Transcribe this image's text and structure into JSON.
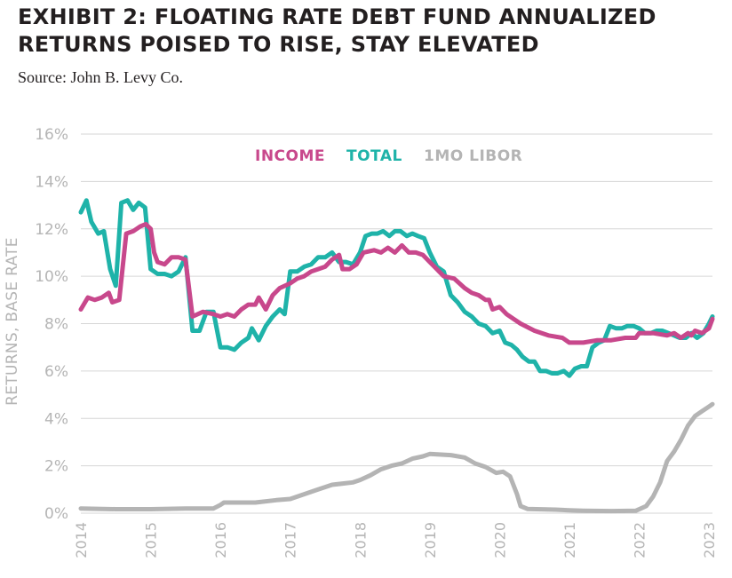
{
  "title_line1": "EXHIBIT 2: FLOATING RATE DEBT FUND ANNUALIZED",
  "title_line2": "RETURNS POISED TO RISE, STAY ELEVATED",
  "source": "Source: John B. Levy Co.",
  "chart_data": {
    "type": "line",
    "title": "EXHIBIT 2: FLOATING RATE DEBT FUND ANNUALIZED RETURNS POISED TO RISE, STAY ELEVATED",
    "xlabel": "",
    "ylabel": "RETURNS, BASE RATE",
    "xlim": [
      2014,
      2023.1
    ],
    "ylim": [
      0,
      16
    ],
    "x_ticks": [
      "2014",
      "2015",
      "2016",
      "2017",
      "2018",
      "2019",
      "2020",
      "2021",
      "2022",
      "2023"
    ],
    "y_ticks": [
      "0%",
      "2%",
      "4%",
      "6%",
      "8%",
      "10%",
      "12%",
      "14%",
      "16%"
    ],
    "grid": "horizontal",
    "legend_position": "top-center",
    "series": [
      {
        "name": "INCOME",
        "color": "#c8488c",
        "points": [
          [
            2014.0,
            8.6
          ],
          [
            2014.1,
            9.1
          ],
          [
            2014.2,
            9.0
          ],
          [
            2014.3,
            9.1
          ],
          [
            2014.4,
            9.3
          ],
          [
            2014.45,
            8.9
          ],
          [
            2014.55,
            9.0
          ],
          [
            2014.65,
            11.8
          ],
          [
            2014.75,
            11.9
          ],
          [
            2014.85,
            12.1
          ],
          [
            2014.93,
            12.2
          ],
          [
            2015.0,
            12.0
          ],
          [
            2015.05,
            11.0
          ],
          [
            2015.1,
            10.6
          ],
          [
            2015.2,
            10.5
          ],
          [
            2015.3,
            10.8
          ],
          [
            2015.4,
            10.8
          ],
          [
            2015.5,
            10.7
          ],
          [
            2015.6,
            8.3
          ],
          [
            2015.75,
            8.5
          ],
          [
            2015.9,
            8.4
          ],
          [
            2016.0,
            8.3
          ],
          [
            2016.1,
            8.4
          ],
          [
            2016.2,
            8.3
          ],
          [
            2016.3,
            8.6
          ],
          [
            2016.4,
            8.8
          ],
          [
            2016.5,
            8.8
          ],
          [
            2016.55,
            9.1
          ],
          [
            2016.65,
            8.6
          ],
          [
            2016.75,
            9.2
          ],
          [
            2016.85,
            9.5
          ],
          [
            2017.0,
            9.7
          ],
          [
            2017.1,
            9.9
          ],
          [
            2017.2,
            10.0
          ],
          [
            2017.3,
            10.2
          ],
          [
            2017.4,
            10.3
          ],
          [
            2017.5,
            10.4
          ],
          [
            2017.6,
            10.7
          ],
          [
            2017.7,
            10.9
          ],
          [
            2017.75,
            10.3
          ],
          [
            2017.85,
            10.3
          ],
          [
            2017.95,
            10.5
          ],
          [
            2018.05,
            11.0
          ],
          [
            2018.2,
            11.1
          ],
          [
            2018.3,
            11.0
          ],
          [
            2018.4,
            11.2
          ],
          [
            2018.5,
            11.0
          ],
          [
            2018.6,
            11.3
          ],
          [
            2018.7,
            11.0
          ],
          [
            2018.8,
            11.0
          ],
          [
            2018.9,
            10.9
          ],
          [
            2019.0,
            10.6
          ],
          [
            2019.1,
            10.3
          ],
          [
            2019.2,
            10.0
          ],
          [
            2019.35,
            9.9
          ],
          [
            2019.5,
            9.5
          ],
          [
            2019.6,
            9.3
          ],
          [
            2019.7,
            9.2
          ],
          [
            2019.8,
            9.0
          ],
          [
            2019.85,
            9.0
          ],
          [
            2019.9,
            8.6
          ],
          [
            2020.0,
            8.7
          ],
          [
            2020.1,
            8.4
          ],
          [
            2020.2,
            8.2
          ],
          [
            2020.3,
            8.0
          ],
          [
            2020.5,
            7.7
          ],
          [
            2020.7,
            7.5
          ],
          [
            2020.9,
            7.4
          ],
          [
            2021.0,
            7.2
          ],
          [
            2021.2,
            7.2
          ],
          [
            2021.4,
            7.3
          ],
          [
            2021.6,
            7.3
          ],
          [
            2021.8,
            7.4
          ],
          [
            2021.95,
            7.4
          ],
          [
            2022.0,
            7.6
          ],
          [
            2022.2,
            7.6
          ],
          [
            2022.4,
            7.5
          ],
          [
            2022.5,
            7.6
          ],
          [
            2022.6,
            7.4
          ],
          [
            2022.7,
            7.6
          ],
          [
            2022.75,
            7.5
          ],
          [
            2022.8,
            7.7
          ],
          [
            2022.9,
            7.6
          ],
          [
            2023.0,
            7.8
          ],
          [
            2023.05,
            8.2
          ]
        ]
      },
      {
        "name": "TOTAL",
        "color": "#1fb3a9",
        "points": [
          [
            2014.0,
            12.7
          ],
          [
            2014.08,
            13.2
          ],
          [
            2014.15,
            12.3
          ],
          [
            2014.25,
            11.8
          ],
          [
            2014.33,
            11.9
          ],
          [
            2014.42,
            10.3
          ],
          [
            2014.5,
            9.6
          ],
          [
            2014.58,
            13.1
          ],
          [
            2014.67,
            13.2
          ],
          [
            2014.75,
            12.8
          ],
          [
            2014.83,
            13.1
          ],
          [
            2014.92,
            12.9
          ],
          [
            2015.0,
            10.3
          ],
          [
            2015.1,
            10.1
          ],
          [
            2015.2,
            10.1
          ],
          [
            2015.3,
            10.0
          ],
          [
            2015.4,
            10.2
          ],
          [
            2015.5,
            10.8
          ],
          [
            2015.6,
            7.7
          ],
          [
            2015.7,
            7.7
          ],
          [
            2015.8,
            8.5
          ],
          [
            2015.9,
            8.5
          ],
          [
            2016.0,
            7.0
          ],
          [
            2016.1,
            7.0
          ],
          [
            2016.2,
            6.9
          ],
          [
            2016.3,
            7.2
          ],
          [
            2016.4,
            7.4
          ],
          [
            2016.45,
            7.8
          ],
          [
            2016.55,
            7.3
          ],
          [
            2016.65,
            7.9
          ],
          [
            2016.75,
            8.3
          ],
          [
            2016.85,
            8.6
          ],
          [
            2016.92,
            8.4
          ],
          [
            2017.0,
            10.2
          ],
          [
            2017.1,
            10.2
          ],
          [
            2017.2,
            10.4
          ],
          [
            2017.3,
            10.5
          ],
          [
            2017.4,
            10.8
          ],
          [
            2017.5,
            10.8
          ],
          [
            2017.6,
            11.0
          ],
          [
            2017.7,
            10.6
          ],
          [
            2017.8,
            10.6
          ],
          [
            2017.9,
            10.5
          ],
          [
            2018.0,
            11.0
          ],
          [
            2018.08,
            11.7
          ],
          [
            2018.17,
            11.8
          ],
          [
            2018.25,
            11.8
          ],
          [
            2018.33,
            11.9
          ],
          [
            2018.42,
            11.7
          ],
          [
            2018.5,
            11.9
          ],
          [
            2018.58,
            11.9
          ],
          [
            2018.67,
            11.7
          ],
          [
            2018.75,
            11.8
          ],
          [
            2018.83,
            11.7
          ],
          [
            2018.92,
            11.6
          ],
          [
            2019.0,
            11.0
          ],
          [
            2019.1,
            10.4
          ],
          [
            2019.2,
            10.2
          ],
          [
            2019.3,
            9.2
          ],
          [
            2019.4,
            8.9
          ],
          [
            2019.5,
            8.5
          ],
          [
            2019.6,
            8.3
          ],
          [
            2019.7,
            8.0
          ],
          [
            2019.8,
            7.9
          ],
          [
            2019.9,
            7.6
          ],
          [
            2020.0,
            7.7
          ],
          [
            2020.08,
            7.2
          ],
          [
            2020.17,
            7.1
          ],
          [
            2020.25,
            6.9
          ],
          [
            2020.33,
            6.6
          ],
          [
            2020.42,
            6.4
          ],
          [
            2020.5,
            6.4
          ],
          [
            2020.58,
            6.0
          ],
          [
            2020.67,
            6.0
          ],
          [
            2020.75,
            5.9
          ],
          [
            2020.83,
            5.9
          ],
          [
            2020.92,
            6.0
          ],
          [
            2021.0,
            5.8
          ],
          [
            2021.08,
            6.1
          ],
          [
            2021.17,
            6.2
          ],
          [
            2021.25,
            6.2
          ],
          [
            2021.33,
            7.0
          ],
          [
            2021.42,
            7.2
          ],
          [
            2021.5,
            7.3
          ],
          [
            2021.58,
            7.9
          ],
          [
            2021.67,
            7.8
          ],
          [
            2021.75,
            7.8
          ],
          [
            2021.83,
            7.9
          ],
          [
            2021.92,
            7.9
          ],
          [
            2022.0,
            7.8
          ],
          [
            2022.08,
            7.6
          ],
          [
            2022.17,
            7.6
          ],
          [
            2022.25,
            7.7
          ],
          [
            2022.33,
            7.7
          ],
          [
            2022.42,
            7.6
          ],
          [
            2022.5,
            7.5
          ],
          [
            2022.58,
            7.4
          ],
          [
            2022.67,
            7.4
          ],
          [
            2022.75,
            7.6
          ],
          [
            2022.83,
            7.4
          ],
          [
            2022.92,
            7.6
          ],
          [
            2023.0,
            8.0
          ],
          [
            2023.05,
            8.3
          ]
        ]
      },
      {
        "name": "1MO LIBOR",
        "color": "#b4b4b4",
        "points": [
          [
            2014.0,
            0.2
          ],
          [
            2014.5,
            0.17
          ],
          [
            2015.0,
            0.17
          ],
          [
            2015.5,
            0.2
          ],
          [
            2015.9,
            0.2
          ],
          [
            2016.0,
            0.35
          ],
          [
            2016.05,
            0.45
          ],
          [
            2016.5,
            0.45
          ],
          [
            2016.8,
            0.55
          ],
          [
            2017.0,
            0.6
          ],
          [
            2017.2,
            0.8
          ],
          [
            2017.4,
            1.0
          ],
          [
            2017.5,
            1.1
          ],
          [
            2017.6,
            1.2
          ],
          [
            2017.9,
            1.3
          ],
          [
            2018.0,
            1.4
          ],
          [
            2018.15,
            1.6
          ],
          [
            2018.3,
            1.85
          ],
          [
            2018.45,
            2.0
          ],
          [
            2018.6,
            2.1
          ],
          [
            2018.75,
            2.3
          ],
          [
            2018.9,
            2.4
          ],
          [
            2019.0,
            2.5
          ],
          [
            2019.3,
            2.45
          ],
          [
            2019.5,
            2.35
          ],
          [
            2019.65,
            2.1
          ],
          [
            2019.8,
            1.95
          ],
          [
            2019.95,
            1.7
          ],
          [
            2020.05,
            1.75
          ],
          [
            2020.15,
            1.55
          ],
          [
            2020.25,
            0.8
          ],
          [
            2020.3,
            0.3
          ],
          [
            2020.4,
            0.18
          ],
          [
            2020.8,
            0.15
          ],
          [
            2021.0,
            0.12
          ],
          [
            2021.2,
            0.1
          ],
          [
            2021.6,
            0.09
          ],
          [
            2021.95,
            0.1
          ],
          [
            2022.1,
            0.3
          ],
          [
            2022.2,
            0.7
          ],
          [
            2022.3,
            1.3
          ],
          [
            2022.4,
            2.2
          ],
          [
            2022.5,
            2.6
          ],
          [
            2022.6,
            3.1
          ],
          [
            2022.7,
            3.7
          ],
          [
            2022.8,
            4.1
          ],
          [
            2022.9,
            4.3
          ],
          [
            2023.0,
            4.5
          ],
          [
            2023.05,
            4.6
          ]
        ]
      }
    ]
  }
}
